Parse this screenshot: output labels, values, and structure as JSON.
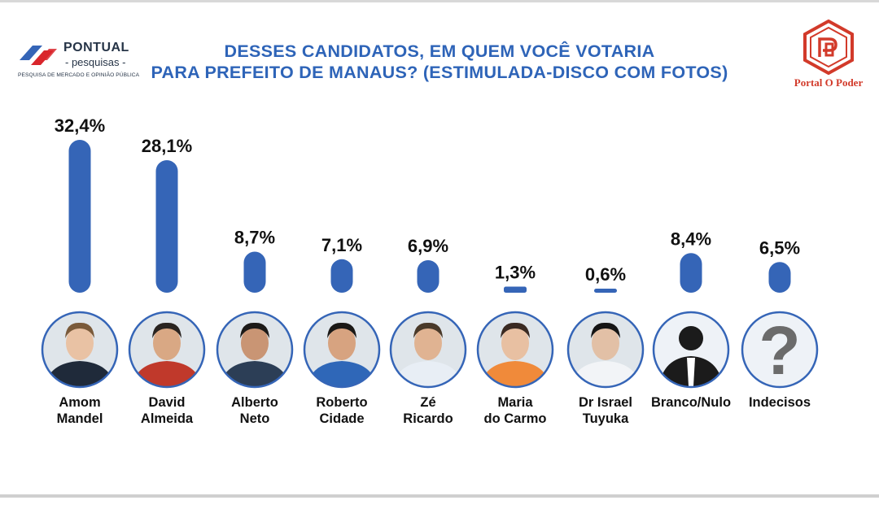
{
  "header": {
    "brand_left": {
      "name": "PONTUAL",
      "sub": "- pesquisas -",
      "tagline": "PESQUISA DE MERCADO E OPINIÃO PÚBLICA"
    },
    "title_line1": "DESSES CANDIDATOS, EM QUEM VOCÊ VOTARIA",
    "title_line2": "PARA PREFEITO DE MANAUS? (ESTIMULADA-DISCO COM FOTOS)",
    "brand_right": {
      "name": "Portal O Poder"
    }
  },
  "colors": {
    "bar": "#3565b7",
    "title": "#2e64b8",
    "photo_ring": "#3565b7",
    "brand_right": "#d23a2a"
  },
  "chart_data": {
    "type": "bar",
    "title": "DESSES CANDIDATOS, EM QUEM VOCÊ VOTARIA PARA PREFEITO DE MANAUS? (ESTIMULADA-DISCO COM FOTOS)",
    "categories": [
      [
        "Amom",
        "Mandel"
      ],
      [
        "David",
        "Almeida"
      ],
      [
        "Alberto",
        "Neto"
      ],
      [
        "Roberto",
        "Cidade"
      ],
      [
        "Zé",
        "Ricardo"
      ],
      [
        "Maria",
        "do Carmo"
      ],
      [
        "Dr Israel",
        "Tuyuka"
      ],
      [
        "Branco/Nulo"
      ],
      [
        "Indecisos"
      ]
    ],
    "values": [
      32.4,
      28.1,
      8.7,
      7.1,
      6.9,
      1.3,
      0.6,
      8.4,
      6.5
    ],
    "value_labels": [
      "32,4%",
      "28,1%",
      "8,7%",
      "7,1%",
      "6,9%",
      "1,3%",
      "0,6%",
      "8,4%",
      "6,5%"
    ],
    "photos": [
      "person",
      "person",
      "person",
      "person",
      "person",
      "person",
      "person",
      "silhouette-icon",
      "question-mark-icon"
    ],
    "ylim": [
      0,
      32.4
    ],
    "grid": false,
    "legend": "none"
  }
}
